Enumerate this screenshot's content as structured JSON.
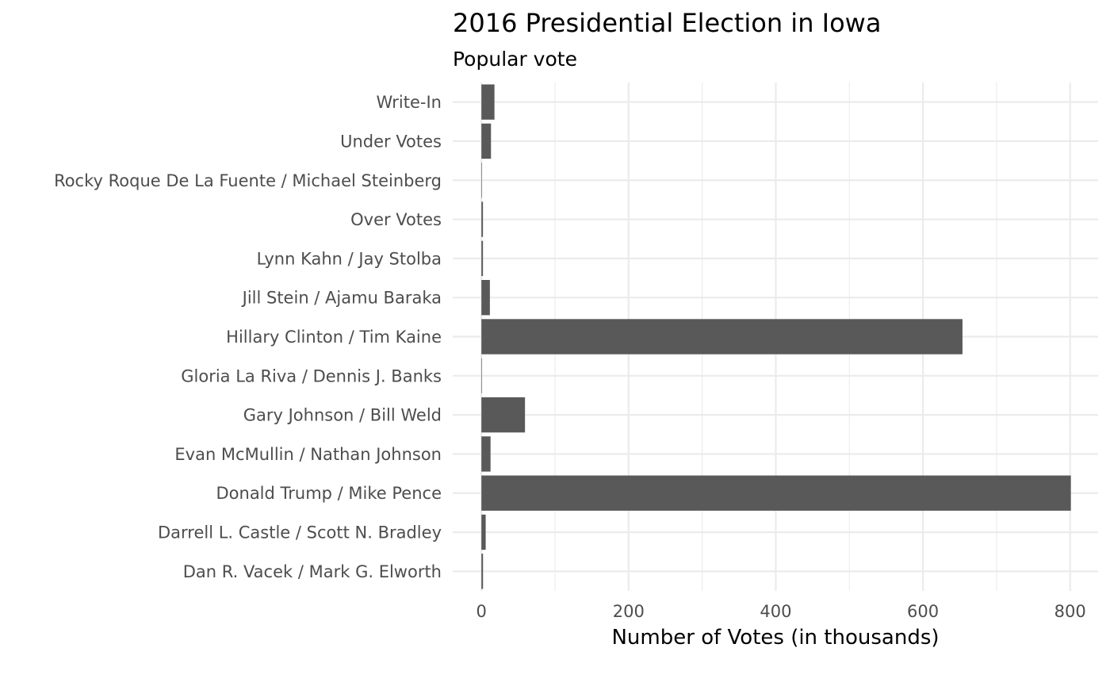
{
  "chart_data": {
    "type": "bar",
    "orientation": "horizontal",
    "title": "2016 Presidential Election in Iowa",
    "subtitle": "Popular vote",
    "xlabel": "Number of Votes (in thousands)",
    "ylabel": "",
    "xlim": [
      -39,
      838
    ],
    "xticks": [
      0,
      200,
      400,
      600,
      800
    ],
    "xtick_labels": [
      "0",
      "200",
      "400",
      "600",
      "800"
    ],
    "x_minor_ticks": [
      100,
      300,
      500,
      700
    ],
    "grid": true,
    "legend": "none",
    "bar_color": "#595959",
    "categories": [
      "Dan R. Vacek / Mark G. Elworth",
      "Darrell L. Castle / Scott N. Bradley",
      "Donald Trump / Mike Pence",
      "Evan McMullin / Nathan Johnson",
      "Gary Johnson / Bill Weld",
      "Gloria La Riva / Dennis J. Banks",
      "Hillary Clinton / Tim Kaine",
      "Jill Stein / Ajamu Baraka",
      "Lynn Kahn / Jay Stolba",
      "Over Votes",
      "Rocky Roque De La Fuente / Michael Steinberg",
      "Under Votes",
      "Write-In"
    ],
    "values": [
      2.2,
      5.8,
      800.98,
      12.4,
      59.2,
      0.3,
      653.7,
      11.5,
      2.1,
      2.1,
      0.45,
      13.0,
      17.7
    ]
  }
}
